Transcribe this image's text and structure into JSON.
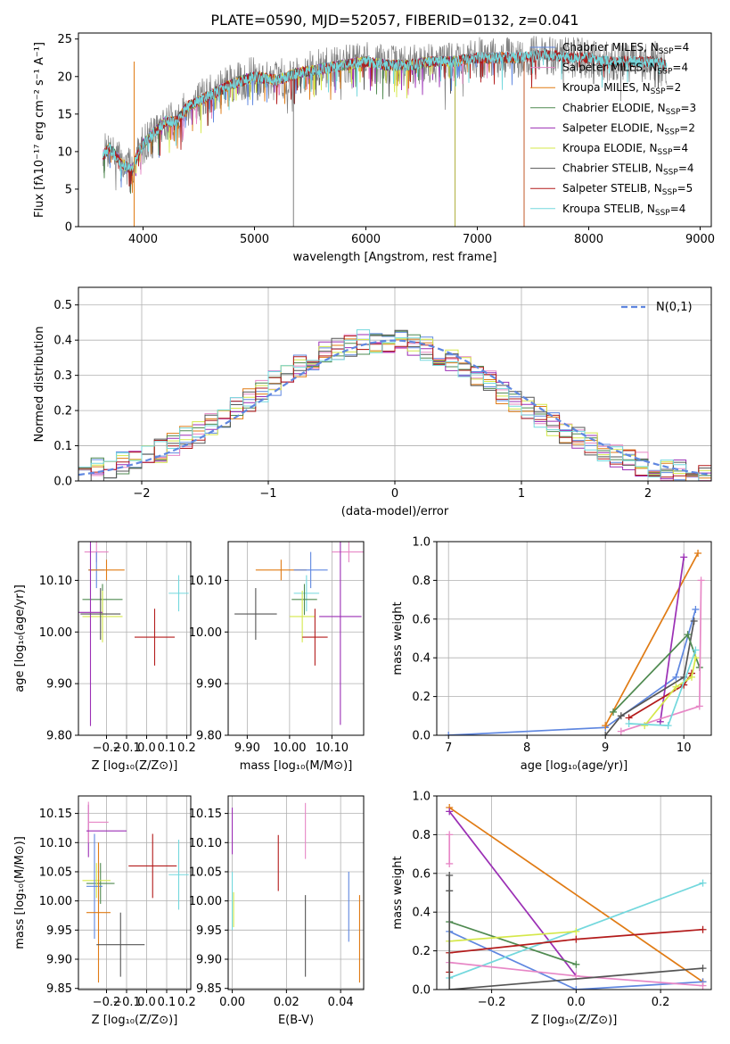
{
  "figure_title": "PLATE=0590, MJD=52057, FIBERID=0132, z=0.041",
  "colors": {
    "Chabrier MILES": "#5f87e0",
    "Salpeter MILES": "#e787c6",
    "Kroupa MILES": "#e07b14",
    "Chabrier ELODIE": "#4f8a50",
    "Salpeter ELODIE": "#9b2fb5",
    "Kroupa ELODIE": "#d5e84a",
    "Chabrier STELIB": "#555555",
    "Salpeter STELIB": "#b31b1b",
    "Kroupa STELIB": "#73d8dd",
    "grid": "#b0b0b0",
    "normal_curve": "#5f87e0"
  },
  "chart_data": [
    {
      "type": "line",
      "id": "spectrum",
      "xlabel": "wavelength [Angstrom, rest frame]",
      "ylabel": "Flux [fλ10⁻¹⁷ erg cm⁻² s⁻¹ A⁻¹]",
      "xlim": [
        3420,
        9100
      ],
      "ylim": [
        0,
        25.8
      ],
      "xticks": [
        4000,
        5000,
        6000,
        7000,
        8000,
        9000
      ],
      "yticks": [
        0,
        5,
        10,
        15,
        20,
        25
      ],
      "grid": false,
      "legend_position": "upper right",
      "legend": [
        {
          "label": "Chabrier MILES, N",
          "sub": "SSP",
          "tail": "=4"
        },
        {
          "label": "Salpeter MILES, N",
          "sub": "SSP",
          "tail": "=4"
        },
        {
          "label": "Kroupa MILES, N",
          "sub": "SSP",
          "tail": "=2"
        },
        {
          "label": "Chabrier ELODIE, N",
          "sub": "SSP",
          "tail": "=3"
        },
        {
          "label": "Salpeter ELODIE, N",
          "sub": "SSP",
          "tail": "=2"
        },
        {
          "label": "Kroupa ELODIE, N",
          "sub": "SSP",
          "tail": "=4"
        },
        {
          "label": "Chabrier STELIB, N",
          "sub": "SSP",
          "tail": "=4"
        },
        {
          "label": "Salpeter STELIB, N",
          "sub": "SSP",
          "tail": "=5"
        },
        {
          "label": "Kroupa STELIB, N",
          "sub": "SSP",
          "tail": "=4"
        }
      ],
      "continuum": [
        [
          3640,
          9.5
        ],
        [
          3700,
          10.5
        ],
        [
          3800,
          8.5
        ],
        [
          3900,
          7.5
        ],
        [
          3950,
          9.5
        ],
        [
          4000,
          11
        ],
        [
          4100,
          12.5
        ],
        [
          4200,
          14
        ],
        [
          4300,
          14
        ],
        [
          4400,
          16
        ],
        [
          4600,
          17.5
        ],
        [
          4800,
          19
        ],
        [
          5000,
          20
        ],
        [
          5200,
          19.5
        ],
        [
          5400,
          20.5
        ],
        [
          5600,
          21
        ],
        [
          5800,
          21.5
        ],
        [
          6000,
          22
        ],
        [
          6200,
          21.5
        ],
        [
          6400,
          21.5
        ],
        [
          6600,
          22
        ],
        [
          6800,
          22
        ],
        [
          7000,
          22.5
        ],
        [
          7200,
          22.5
        ],
        [
          7400,
          22.5
        ],
        [
          7600,
          23
        ],
        [
          7800,
          22.5
        ],
        [
          8000,
          22.5
        ],
        [
          8200,
          22
        ],
        [
          8400,
          22
        ],
        [
          8600,
          22
        ],
        [
          8700,
          21.5
        ]
      ],
      "model_ranges": {
        "MILES": [
          3640,
          7420
        ],
        "ELODIE": [
          3640,
          6800
        ],
        "STELIB": [
          3640,
          8700
        ]
      }
    },
    {
      "type": "histogram",
      "id": "residuals",
      "xlabel": "(data-model)/error",
      "ylabel": "Normed distribution",
      "xlim": [
        -2.5,
        2.5
      ],
      "ylim": [
        0,
        0.55
      ],
      "xticks": [
        -2,
        -1,
        0,
        1,
        2
      ],
      "yticks": [
        0.0,
        0.1,
        0.2,
        0.3,
        0.4,
        0.5
      ],
      "grid": true,
      "bin_width": 0.1,
      "curve_label": "N(0,1)",
      "curve_legend_position": "upper right",
      "curve": "normal(0,1)"
    },
    {
      "type": "scatter",
      "id": "age_vs_Z",
      "xlabel": "Z [log₁₀(Z/Z⊙)]",
      "ylabel": "age  [log₁₀(age/yr)]",
      "xlim": [
        -0.34,
        0.22
      ],
      "ylim": [
        9.8,
        10.175
      ],
      "xticks": [
        -0.2,
        -0.1,
        0.0,
        0.1,
        0.2
      ],
      "yticks": [
        9.8,
        9.9,
        10.0,
        10.1
      ],
      "points": [
        {
          "model": "Salpeter MILES",
          "x": -0.25,
          "xerr": 0.06,
          "y": 10.155,
          "yerr": 0.02
        },
        {
          "model": "Chabrier MILES",
          "x": -0.25,
          "xerr": 0.04,
          "y": 10.12,
          "yerr": 0.035
        },
        {
          "model": "Kroupa MILES",
          "x": -0.2,
          "xerr": 0.09,
          "y": 10.12,
          "yerr": 0.02
        },
        {
          "model": "Chabrier ELODIE",
          "x": -0.22,
          "xerr": 0.1,
          "y": 10.063,
          "yerr": 0.03
        },
        {
          "model": "Kroupa ELODIE",
          "x": -0.22,
          "xerr": 0.1,
          "y": 10.03,
          "yerr": 0.05
        },
        {
          "model": "Salpeter ELODIE",
          "x": -0.28,
          "xerr": 0.06,
          "y": 10.038,
          "yerr": 0.22
        },
        {
          "model": "Chabrier STELIB",
          "x": -0.23,
          "xerr": 0.1,
          "y": 10.035,
          "yerr": 0.05
        },
        {
          "model": "Salpeter STELIB",
          "x": 0.04,
          "xerr": 0.1,
          "y": 9.99,
          "yerr": 0.055
        },
        {
          "model": "Kroupa STELIB",
          "x": 0.16,
          "xerr": 0.05,
          "y": 10.075,
          "yerr": 0.035
        }
      ]
    },
    {
      "type": "scatter",
      "id": "age_vs_mass",
      "xlabel": "mass [log₁₀(M/M⊙)]",
      "ylabel": "",
      "xlim": [
        9.855,
        10.175
      ],
      "ylim": [
        9.8,
        10.175
      ],
      "xticks": [
        9.9,
        10.0,
        10.1
      ],
      "yticks": [
        9.8,
        9.9,
        10.0,
        10.1
      ],
      "points": [
        {
          "model": "Kroupa MILES",
          "x": 9.98,
          "xerr": 0.06,
          "y": 10.12,
          "yerr": 0.02
        },
        {
          "model": "Chabrier MILES",
          "x": 10.05,
          "xerr": 0.04,
          "y": 10.12,
          "yerr": 0.035
        },
        {
          "model": "Salpeter MILES",
          "x": 10.14,
          "xerr": 0.04,
          "y": 10.155,
          "yerr": 0.02
        },
        {
          "model": "Kroupa STELIB",
          "x": 10.04,
          "xerr": 0.03,
          "y": 10.075,
          "yerr": 0.035
        },
        {
          "model": "Chabrier ELODIE",
          "x": 10.035,
          "xerr": 0.03,
          "y": 10.063,
          "yerr": 0.03
        },
        {
          "model": "Kroupa ELODIE",
          "x": 10.03,
          "xerr": 0.03,
          "y": 10.03,
          "yerr": 0.05
        },
        {
          "model": "Chabrier STELIB",
          "x": 9.92,
          "xerr": 0.05,
          "y": 10.035,
          "yerr": 0.05
        },
        {
          "model": "Salpeter ELODIE",
          "x": 10.12,
          "xerr": 0.05,
          "y": 10.03,
          "yerr": 0.21
        },
        {
          "model": "Salpeter STELIB",
          "x": 10.06,
          "xerr": 0.03,
          "y": 9.99,
          "yerr": 0.055
        }
      ]
    },
    {
      "type": "line",
      "id": "weight_vs_age",
      "xlabel": "age  [log₁₀(age/yr)]",
      "ylabel": "mass weight",
      "xlim": [
        6.85,
        10.35
      ],
      "ylim": [
        0,
        1.0
      ],
      "xticks": [
        7,
        8,
        9,
        10
      ],
      "yticks": [
        0.0,
        0.2,
        0.4,
        0.6,
        0.8,
        1.0
      ],
      "series": [
        {
          "model": "Chabrier MILES",
          "points": [
            [
              7.0,
              0.0
            ],
            [
              9.0,
              0.04
            ],
            [
              9.9,
              0.3
            ],
            [
              10.15,
              0.65
            ]
          ]
        },
        {
          "model": "Kroupa MILES",
          "points": [
            [
              9.0,
              0.05
            ],
            [
              10.18,
              0.94
            ]
          ]
        },
        {
          "model": "Salpeter ELODIE",
          "points": [
            [
              9.7,
              0.07
            ],
            [
              10.0,
              0.92
            ]
          ]
        },
        {
          "model": "Chabrier STELIB",
          "points": [
            [
              9.0,
              0.0
            ],
            [
              9.2,
              0.1
            ],
            [
              10.0,
              0.3
            ],
            [
              10.13,
              0.59
            ]
          ]
        },
        {
          "model": "Salpeter STELIB",
          "points": [
            [
              9.3,
              0.09
            ],
            [
              10.0,
              0.26
            ],
            [
              10.1,
              0.32
            ]
          ]
        },
        {
          "model": "Chabrier ELODIE",
          "points": [
            [
              9.1,
              0.12
            ],
            [
              10.05,
              0.52
            ],
            [
              10.2,
              0.35
            ]
          ]
        },
        {
          "model": "Salpeter MILES",
          "points": [
            [
              9.2,
              0.02
            ],
            [
              10.2,
              0.15
            ],
            [
              10.22,
              0.8
            ]
          ]
        },
        {
          "model": "Kroupa ELODIE",
          "points": [
            [
              9.5,
              0.05
            ],
            [
              9.9,
              0.25
            ],
            [
              10.1,
              0.3
            ],
            [
              10.15,
              0.4
            ]
          ]
        },
        {
          "model": "Kroupa STELIB",
          "points": [
            [
              9.3,
              0.06
            ],
            [
              9.8,
              0.05
            ],
            [
              10.15,
              0.44
            ]
          ]
        }
      ]
    },
    {
      "type": "scatter",
      "id": "mass_vs_Z",
      "xlabel": "Z [log₁₀(Z/Z⊙)]",
      "ylabel": "mass [log₁₀(M/M⊙)]",
      "xlim": [
        -0.34,
        0.22
      ],
      "ylim": [
        9.848,
        10.18
      ],
      "xticks": [
        -0.2,
        -0.1,
        0.0,
        0.1,
        0.2
      ],
      "yticks": [
        9.85,
        9.9,
        9.95,
        10.0,
        10.05,
        10.1,
        10.15
      ],
      "points": [
        {
          "model": "Salpeter ELODIE",
          "x": -0.29,
          "xerr": 0.0,
          "y": 10.12,
          "yerr": 0.045
        },
        {
          "model": "Salpeter MILES",
          "x": -0.29,
          "xerr": 0.0,
          "y": 10.135,
          "yerr": 0.035
        },
        {
          "model": "Salpeter ELODIE",
          "x": -0.2,
          "xerr": 0.1,
          "y": 10.12,
          "yerr": 0.0
        },
        {
          "model": "Salpeter MILES",
          "x": -0.24,
          "xerr": 0.05,
          "y": 10.135,
          "yerr": 0.0
        },
        {
          "model": "Salpeter STELIB",
          "x": 0.03,
          "xerr": 0.12,
          "y": 10.06,
          "yerr": 0.055
        },
        {
          "model": "Kroupa STELIB",
          "x": 0.16,
          "xerr": 0.05,
          "y": 10.045,
          "yerr": 0.06
        },
        {
          "model": "Chabrier ELODIE",
          "x": -0.23,
          "xerr": 0.07,
          "y": 10.03,
          "yerr": 0.035
        },
        {
          "model": "Kroupa ELODIE",
          "x": -0.25,
          "xerr": 0.07,
          "y": 10.035,
          "yerr": 0.03
        },
        {
          "model": "Chabrier MILES",
          "x": -0.26,
          "xerr": 0.04,
          "y": 10.025,
          "yerr": 0.09
        },
        {
          "model": "Kroupa MILES",
          "x": -0.24,
          "xerr": 0.06,
          "y": 9.98,
          "yerr": 0.12
        },
        {
          "model": "Chabrier STELIB",
          "x": -0.13,
          "xerr": 0.12,
          "y": 9.925,
          "yerr": 0.055
        }
      ]
    },
    {
      "type": "scatter",
      "id": "mass_vs_ebv",
      "xlabel": "E(B-V)",
      "ylabel": "",
      "xlim": [
        -0.0015,
        0.0485
      ],
      "ylim": [
        9.848,
        10.18
      ],
      "xticks": [
        0.0,
        0.02,
        0.04
      ],
      "yticks": [
        9.85,
        9.9,
        9.95,
        10.0,
        10.05,
        10.1,
        10.15
      ],
      "points": [
        {
          "model": "Salpeter ELODIE",
          "x": 0.0,
          "xerr": 0.0,
          "y": 10.12,
          "yerr": 0.04
        },
        {
          "model": "Kroupa STELIB",
          "x": 0.0,
          "xerr": 0.0,
          "y": 10.0,
          "yerr": 0.05
        },
        {
          "model": "Kroupa ELODIE",
          "x": 0.0005,
          "xerr": 0.0,
          "y": 9.985,
          "yerr": 0.03
        },
        {
          "model": "Salpeter STELIB",
          "x": 0.017,
          "xerr": 0.0,
          "y": 10.065,
          "yerr": 0.048
        },
        {
          "model": "Salpeter MILES",
          "x": 0.027,
          "xerr": 0.0,
          "y": 10.12,
          "yerr": 0.048
        },
        {
          "model": "Chabrier STELIB",
          "x": 0.027,
          "xerr": 0.0,
          "y": 9.94,
          "yerr": 0.07
        },
        {
          "model": "Chabrier MILES",
          "x": 0.043,
          "xerr": 0.0,
          "y": 9.99,
          "yerr": 0.06
        },
        {
          "model": "Kroupa MILES",
          "x": 0.047,
          "xerr": 0.0,
          "y": 9.935,
          "yerr": 0.075
        }
      ]
    },
    {
      "type": "line",
      "id": "weight_vs_Z",
      "xlabel": "Z [log₁₀(Z/Z⊙)]",
      "ylabel": "mass weight",
      "xlim": [
        -0.33,
        0.32
      ],
      "ylim": [
        0,
        1.0
      ],
      "xticks": [
        -0.2,
        0.0,
        0.2
      ],
      "yticks": [
        0.0,
        0.2,
        0.4,
        0.6,
        0.8,
        1.0
      ],
      "series": [
        {
          "model": "Kroupa MILES",
          "points": [
            [
              -0.3,
              0.94
            ],
            [
              0.3,
              0.04
            ]
          ]
        },
        {
          "model": "Salpeter ELODIE",
          "points": [
            [
              -0.3,
              0.92
            ],
            [
              0.0,
              0.07
            ]
          ]
        },
        {
          "model": "Chabrier ELODIE",
          "points": [
            [
              -0.3,
              0.35
            ],
            [
              0.0,
              0.13
            ]
          ]
        },
        {
          "model": "Chabrier MILES",
          "points": [
            [
              -0.3,
              0.3
            ],
            [
              0.0,
              0.0
            ],
            [
              0.3,
              0.04
            ]
          ]
        },
        {
          "model": "Kroupa STELIB",
          "points": [
            [
              -0.3,
              0.06
            ],
            [
              0.3,
              0.55
            ]
          ]
        },
        {
          "model": "Salpeter STELIB",
          "points": [
            [
              -0.3,
              0.09
            ],
            [
              -0.3,
              0.19
            ],
            [
              0.0,
              0.26
            ],
            [
              0.3,
              0.31
            ]
          ]
        },
        {
          "model": "Kroupa ELODIE",
          "points": [
            [
              -0.3,
              0.25
            ],
            [
              0.0,
              0.3
            ]
          ]
        },
        {
          "model": "Salpeter MILES",
          "points": [
            [
              -0.3,
              0.14
            ],
            [
              0.0,
              0.07
            ],
            [
              0.3,
              0.02
            ]
          ]
        },
        {
          "model": "Chabrier STELIB",
          "points": [
            [
              -0.3,
              0.59
            ],
            [
              -0.3,
              0.51
            ],
            [
              -0.3,
              0.0
            ],
            [
              0.3,
              0.11
            ]
          ]
        },
        {
          "model": "Salpeter MILES",
          "points": [
            [
              -0.3,
              0.8
            ],
            [
              -0.3,
              0.65
            ]
          ]
        }
      ]
    }
  ]
}
